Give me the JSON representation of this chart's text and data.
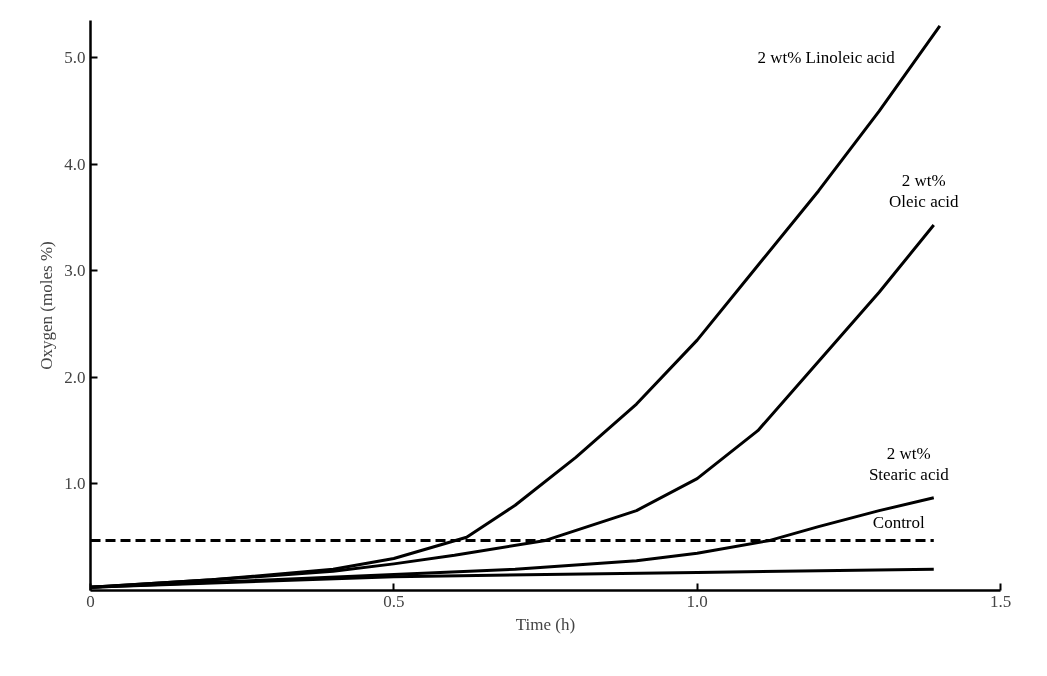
{
  "chart_data": {
    "type": "line",
    "xlabel": "Time (h)",
    "ylabel": "Oxygen (moles %)",
    "xlim": [
      0,
      1.5
    ],
    "ylim": [
      0,
      5.35
    ],
    "xticks": [
      0,
      {
        "value": 0.5,
        "label": "0.5"
      },
      {
        "value": 1.0,
        "label": "1.0"
      },
      {
        "value": 1.5,
        "label": "1.5"
      }
    ],
    "yticks": [
      {
        "value": 1.0,
        "label": "1.0"
      },
      {
        "value": 2.0,
        "label": "2.0"
      },
      {
        "value": 3.0,
        "label": "3.0"
      },
      {
        "value": 4.0,
        "label": "4.0"
      },
      {
        "value": 5.0,
        "label": "5.0"
      }
    ],
    "grid": false,
    "marker": "none",
    "series": [
      {
        "name": "2 wt% Linoleic acid",
        "color": "#000000",
        "line_style": "solid",
        "x": [
          0,
          0.2,
          0.4,
          0.5,
          0.62,
          0.7,
          0.8,
          0.9,
          1.0,
          1.1,
          1.2,
          1.3,
          1.4
        ],
        "values": [
          0.03,
          0.1,
          0.2,
          0.3,
          0.5,
          0.8,
          1.25,
          1.75,
          2.35,
          3.05,
          3.75,
          4.5,
          5.3
        ]
      },
      {
        "name": "2 wt%\nOleic acid",
        "color": "#000000",
        "line_style": "solid",
        "x": [
          0,
          0.2,
          0.4,
          0.5,
          0.6,
          0.75,
          0.9,
          1.0,
          1.1,
          1.2,
          1.3,
          1.39
        ],
        "values": [
          0.03,
          0.1,
          0.18,
          0.25,
          0.33,
          0.47,
          0.75,
          1.05,
          1.5,
          2.15,
          2.8,
          3.43
        ]
      },
      {
        "name": "2 wt%\nStearic acid",
        "color": "#000000",
        "line_style": "solid",
        "x": [
          0,
          0.3,
          0.5,
          0.7,
          0.9,
          1.0,
          1.12,
          1.2,
          1.3,
          1.39
        ],
        "values": [
          0.03,
          0.1,
          0.15,
          0.2,
          0.28,
          0.35,
          0.47,
          0.6,
          0.75,
          0.87
        ]
      },
      {
        "name": "Control",
        "color": "#000000",
        "line_style": "dashed",
        "x": [
          0,
          1.39
        ],
        "values": [
          0.47,
          0.47
        ]
      },
      {
        "color": "#000000",
        "line_style": "solid",
        "x": [
          0,
          0.5,
          1.0,
          1.39
        ],
        "values": [
          0.03,
          0.13,
          0.17,
          0.2
        ]
      }
    ]
  }
}
